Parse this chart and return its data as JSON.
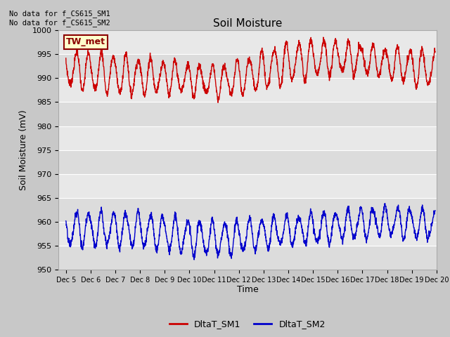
{
  "title": "Soil Moisture",
  "ylabel": "Soil Moisture (mV)",
  "xlabel": "Time",
  "ylim": [
    950,
    1000
  ],
  "yticks": [
    950,
    955,
    960,
    965,
    970,
    975,
    980,
    985,
    990,
    995,
    1000
  ],
  "plot_bg_color": "#dcdcdc",
  "grid_color": "#f5f5f5",
  "annotation_text": "No data for f_CS615_SM1\nNo data for f_CS615_SM2",
  "legend_label": "TW_met",
  "legend_box_color": "#ffffcc",
  "legend_box_edge": "#8b0000",
  "series1_color": "#cc0000",
  "series2_color": "#0000cc",
  "series1_label": "DltaT_SM1",
  "series2_label": "DltaT_SM2",
  "xstart": 4.7,
  "xend": 20.0,
  "xtick_labels": [
    "Dec 5",
    "Dec 6",
    "Dec 7",
    "Dec 8",
    "Dec 9",
    "Dec 10",
    "Dec 11",
    "Dec 12",
    "Dec 13",
    "Dec 14",
    "Dec 15",
    "Dec 16",
    "Dec 17",
    "Dec 18",
    "Dec 19",
    "Dec 20"
  ],
  "xtick_positions": [
    5,
    6,
    7,
    8,
    9,
    10,
    11,
    12,
    13,
    14,
    15,
    16,
    17,
    18,
    19,
    20
  ]
}
